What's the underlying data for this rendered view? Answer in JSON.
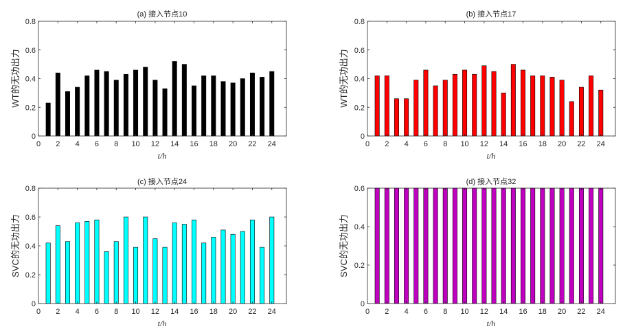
{
  "chart_data": [
    {
      "type": "bar",
      "title": "(a) 接入节点10",
      "xlabel": "t/h",
      "ylabel": "WT的无功出力",
      "categories": [
        1,
        2,
        3,
        4,
        5,
        6,
        7,
        8,
        9,
        10,
        11,
        12,
        13,
        14,
        15,
        16,
        17,
        18,
        19,
        20,
        21,
        22,
        23,
        24
      ],
      "values": [
        0.23,
        0.44,
        0.31,
        0.34,
        0.42,
        0.46,
        0.45,
        0.39,
        0.43,
        0.46,
        0.48,
        0.39,
        0.33,
        0.52,
        0.5,
        0.35,
        0.42,
        0.42,
        0.38,
        0.37,
        0.4,
        0.44,
        0.41,
        0.45
      ],
      "xlim": [
        0,
        25.5
      ],
      "ylim": [
        0,
        0.8
      ],
      "xticks": [
        0,
        2,
        4,
        6,
        8,
        10,
        12,
        14,
        16,
        18,
        20,
        22,
        24
      ],
      "yticks": [
        0,
        0.2,
        0.4,
        0.6,
        0.8
      ],
      "yticklabels": [
        "0",
        "0.2",
        "0.4",
        "0.6",
        "0.8"
      ],
      "color": "#000000"
    },
    {
      "type": "bar",
      "title": "(b) 接入节点17",
      "xlabel": "t/h",
      "ylabel": "WT的无功出力",
      "categories": [
        1,
        2,
        3,
        4,
        5,
        6,
        7,
        8,
        9,
        10,
        11,
        12,
        13,
        14,
        15,
        16,
        17,
        18,
        19,
        20,
        21,
        22,
        23,
        24
      ],
      "values": [
        0.42,
        0.42,
        0.26,
        0.26,
        0.39,
        0.46,
        0.35,
        0.39,
        0.43,
        0.46,
        0.43,
        0.49,
        0.45,
        0.3,
        0.5,
        0.46,
        0.42,
        0.42,
        0.41,
        0.39,
        0.24,
        0.34,
        0.42,
        0.32
      ],
      "xlim": [
        0,
        25.5
      ],
      "ylim": [
        0,
        0.8
      ],
      "xticks": [
        0,
        2,
        4,
        6,
        8,
        10,
        12,
        14,
        16,
        18,
        20,
        22,
        24
      ],
      "yticks": [
        0,
        0.2,
        0.4,
        0.6,
        0.8
      ],
      "yticklabels": [
        "0",
        "0.2",
        "0.4",
        "0.6",
        "0.8"
      ],
      "color": "#ff0000"
    },
    {
      "type": "bar",
      "title": "(c) 接入节点24",
      "xlabel": "t/h",
      "ylabel": "SVC的无功出力",
      "categories": [
        1,
        2,
        3,
        4,
        5,
        6,
        7,
        8,
        9,
        10,
        11,
        12,
        13,
        14,
        15,
        16,
        17,
        18,
        19,
        20,
        21,
        22,
        23,
        24
      ],
      "values": [
        0.42,
        0.54,
        0.43,
        0.56,
        0.57,
        0.58,
        0.36,
        0.43,
        0.6,
        0.39,
        0.6,
        0.45,
        0.39,
        0.56,
        0.55,
        0.58,
        0.42,
        0.46,
        0.51,
        0.48,
        0.5,
        0.58,
        0.39,
        0.6
      ],
      "xlim": [
        0,
        25.5
      ],
      "ylim": [
        0,
        0.8
      ],
      "xticks": [
        0,
        2,
        4,
        6,
        8,
        10,
        12,
        14,
        16,
        18,
        20,
        22,
        24
      ],
      "yticks": [
        0,
        0.2,
        0.4,
        0.6,
        0.8
      ],
      "yticklabels": [
        "0",
        "0.2",
        "0.4",
        "0.6",
        "0.8"
      ],
      "color": "#00ffff"
    },
    {
      "type": "bar",
      "title": "(d) 接入节点32",
      "xlabel": "t/h",
      "ylabel": "SVC的无功出力",
      "categories": [
        1,
        2,
        3,
        4,
        5,
        6,
        7,
        8,
        9,
        10,
        11,
        12,
        13,
        14,
        15,
        16,
        17,
        18,
        19,
        20,
        21,
        22,
        23,
        24
      ],
      "values": [
        0.6,
        0.6,
        0.6,
        0.6,
        0.6,
        0.6,
        0.6,
        0.6,
        0.6,
        0.6,
        0.6,
        0.6,
        0.6,
        0.6,
        0.6,
        0.6,
        0.6,
        0.6,
        0.6,
        0.6,
        0.6,
        0.6,
        0.6,
        0.6
      ],
      "xlim": [
        0,
        25.5
      ],
      "ylim": [
        0,
        0.6
      ],
      "xticks": [
        0,
        2,
        4,
        6,
        8,
        10,
        12,
        14,
        16,
        18,
        20,
        22,
        24
      ],
      "yticks": [
        0,
        0.2,
        0.4,
        0.6
      ],
      "yticklabels": [
        "0",
        "0.2",
        "0.4",
        "0.6"
      ],
      "color": "#bf00bf"
    }
  ]
}
